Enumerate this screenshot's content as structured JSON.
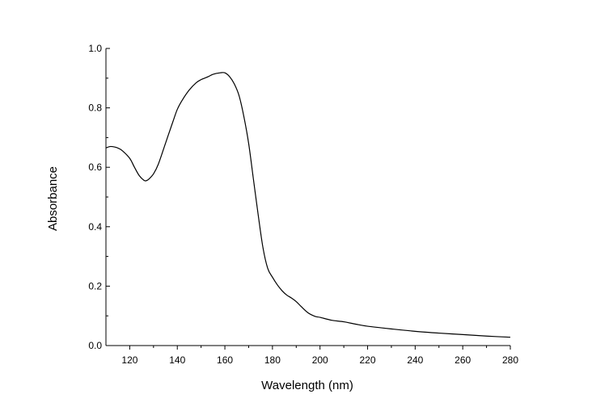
{
  "chart_data": {
    "type": "line",
    "xlabel": "Wavelength (nm)",
    "ylabel": "Absorbance",
    "xlim": [
      110,
      280
    ],
    "ylim": [
      0.0,
      1.0
    ],
    "x_ticks": [
      120,
      140,
      160,
      180,
      200,
      220,
      240,
      260,
      280
    ],
    "y_ticks": [
      0.0,
      0.2,
      0.4,
      0.6,
      0.8,
      1.0
    ],
    "y_tick_labels": [
      "0.0",
      "0.2",
      "0.4",
      "0.6",
      "0.8",
      "1.0"
    ],
    "grid": false,
    "legend": "none",
    "line_color": "#000000",
    "series": [
      {
        "x": [
          110,
          112,
          115,
          117,
          120,
          122,
          124,
          126,
          127,
          128,
          130,
          132,
          135,
          138,
          140,
          142,
          145,
          148,
          150,
          153,
          155,
          158,
          160,
          162,
          164,
          166,
          168,
          170,
          172,
          174,
          176,
          178,
          180,
          182,
          184,
          186,
          188,
          190,
          192,
          195,
          198,
          200,
          205,
          210,
          215,
          220,
          230,
          240,
          250,
          260,
          270,
          280
        ],
        "y": [
          0.665,
          0.67,
          0.665,
          0.655,
          0.63,
          0.6,
          0.572,
          0.556,
          0.555,
          0.56,
          0.578,
          0.61,
          0.68,
          0.75,
          0.795,
          0.825,
          0.86,
          0.885,
          0.895,
          0.905,
          0.913,
          0.918,
          0.918,
          0.905,
          0.88,
          0.84,
          0.77,
          0.68,
          0.56,
          0.44,
          0.33,
          0.26,
          0.23,
          0.205,
          0.185,
          0.17,
          0.16,
          0.148,
          0.132,
          0.11,
          0.098,
          0.095,
          0.085,
          0.08,
          0.072,
          0.065,
          0.056,
          0.048,
          0.042,
          0.037,
          0.032,
          0.028
        ]
      }
    ]
  }
}
